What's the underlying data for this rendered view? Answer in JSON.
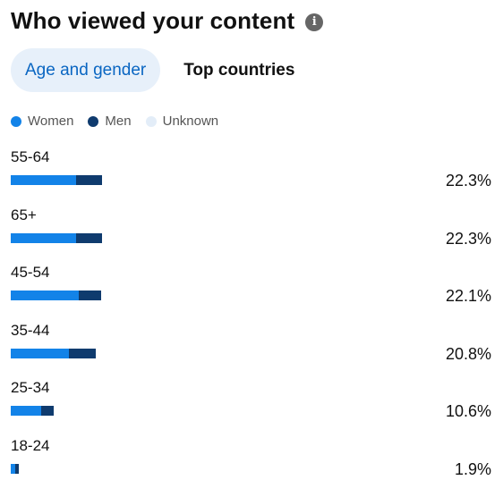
{
  "header": {
    "title": "Who viewed your content",
    "info_icon": "info-icon"
  },
  "tabs": [
    {
      "label": "Age and gender",
      "active": true
    },
    {
      "label": "Top countries",
      "active": false
    }
  ],
  "legend": [
    {
      "label": "Women",
      "color": "#1383e8"
    },
    {
      "label": "Men",
      "color": "#0f3b6e"
    },
    {
      "label": "Unknown",
      "color": "#e3edf8"
    }
  ],
  "rows": [
    {
      "label": "55-64",
      "value": "22.3%",
      "total": 22.3,
      "women_share": 0.72
    },
    {
      "label": "65+",
      "value": "22.3%",
      "total": 22.3,
      "women_share": 0.72
    },
    {
      "label": "45-54",
      "value": "22.1%",
      "total": 22.1,
      "women_share": 0.75
    },
    {
      "label": "35-44",
      "value": "20.8%",
      "total": 20.8,
      "women_share": 0.68
    },
    {
      "label": "25-34",
      "value": "10.6%",
      "total": 10.6,
      "women_share": 0.7
    },
    {
      "label": "18-24",
      "value": "1.9%",
      "total": 1.9,
      "women_share": 0.55
    }
  ]
}
